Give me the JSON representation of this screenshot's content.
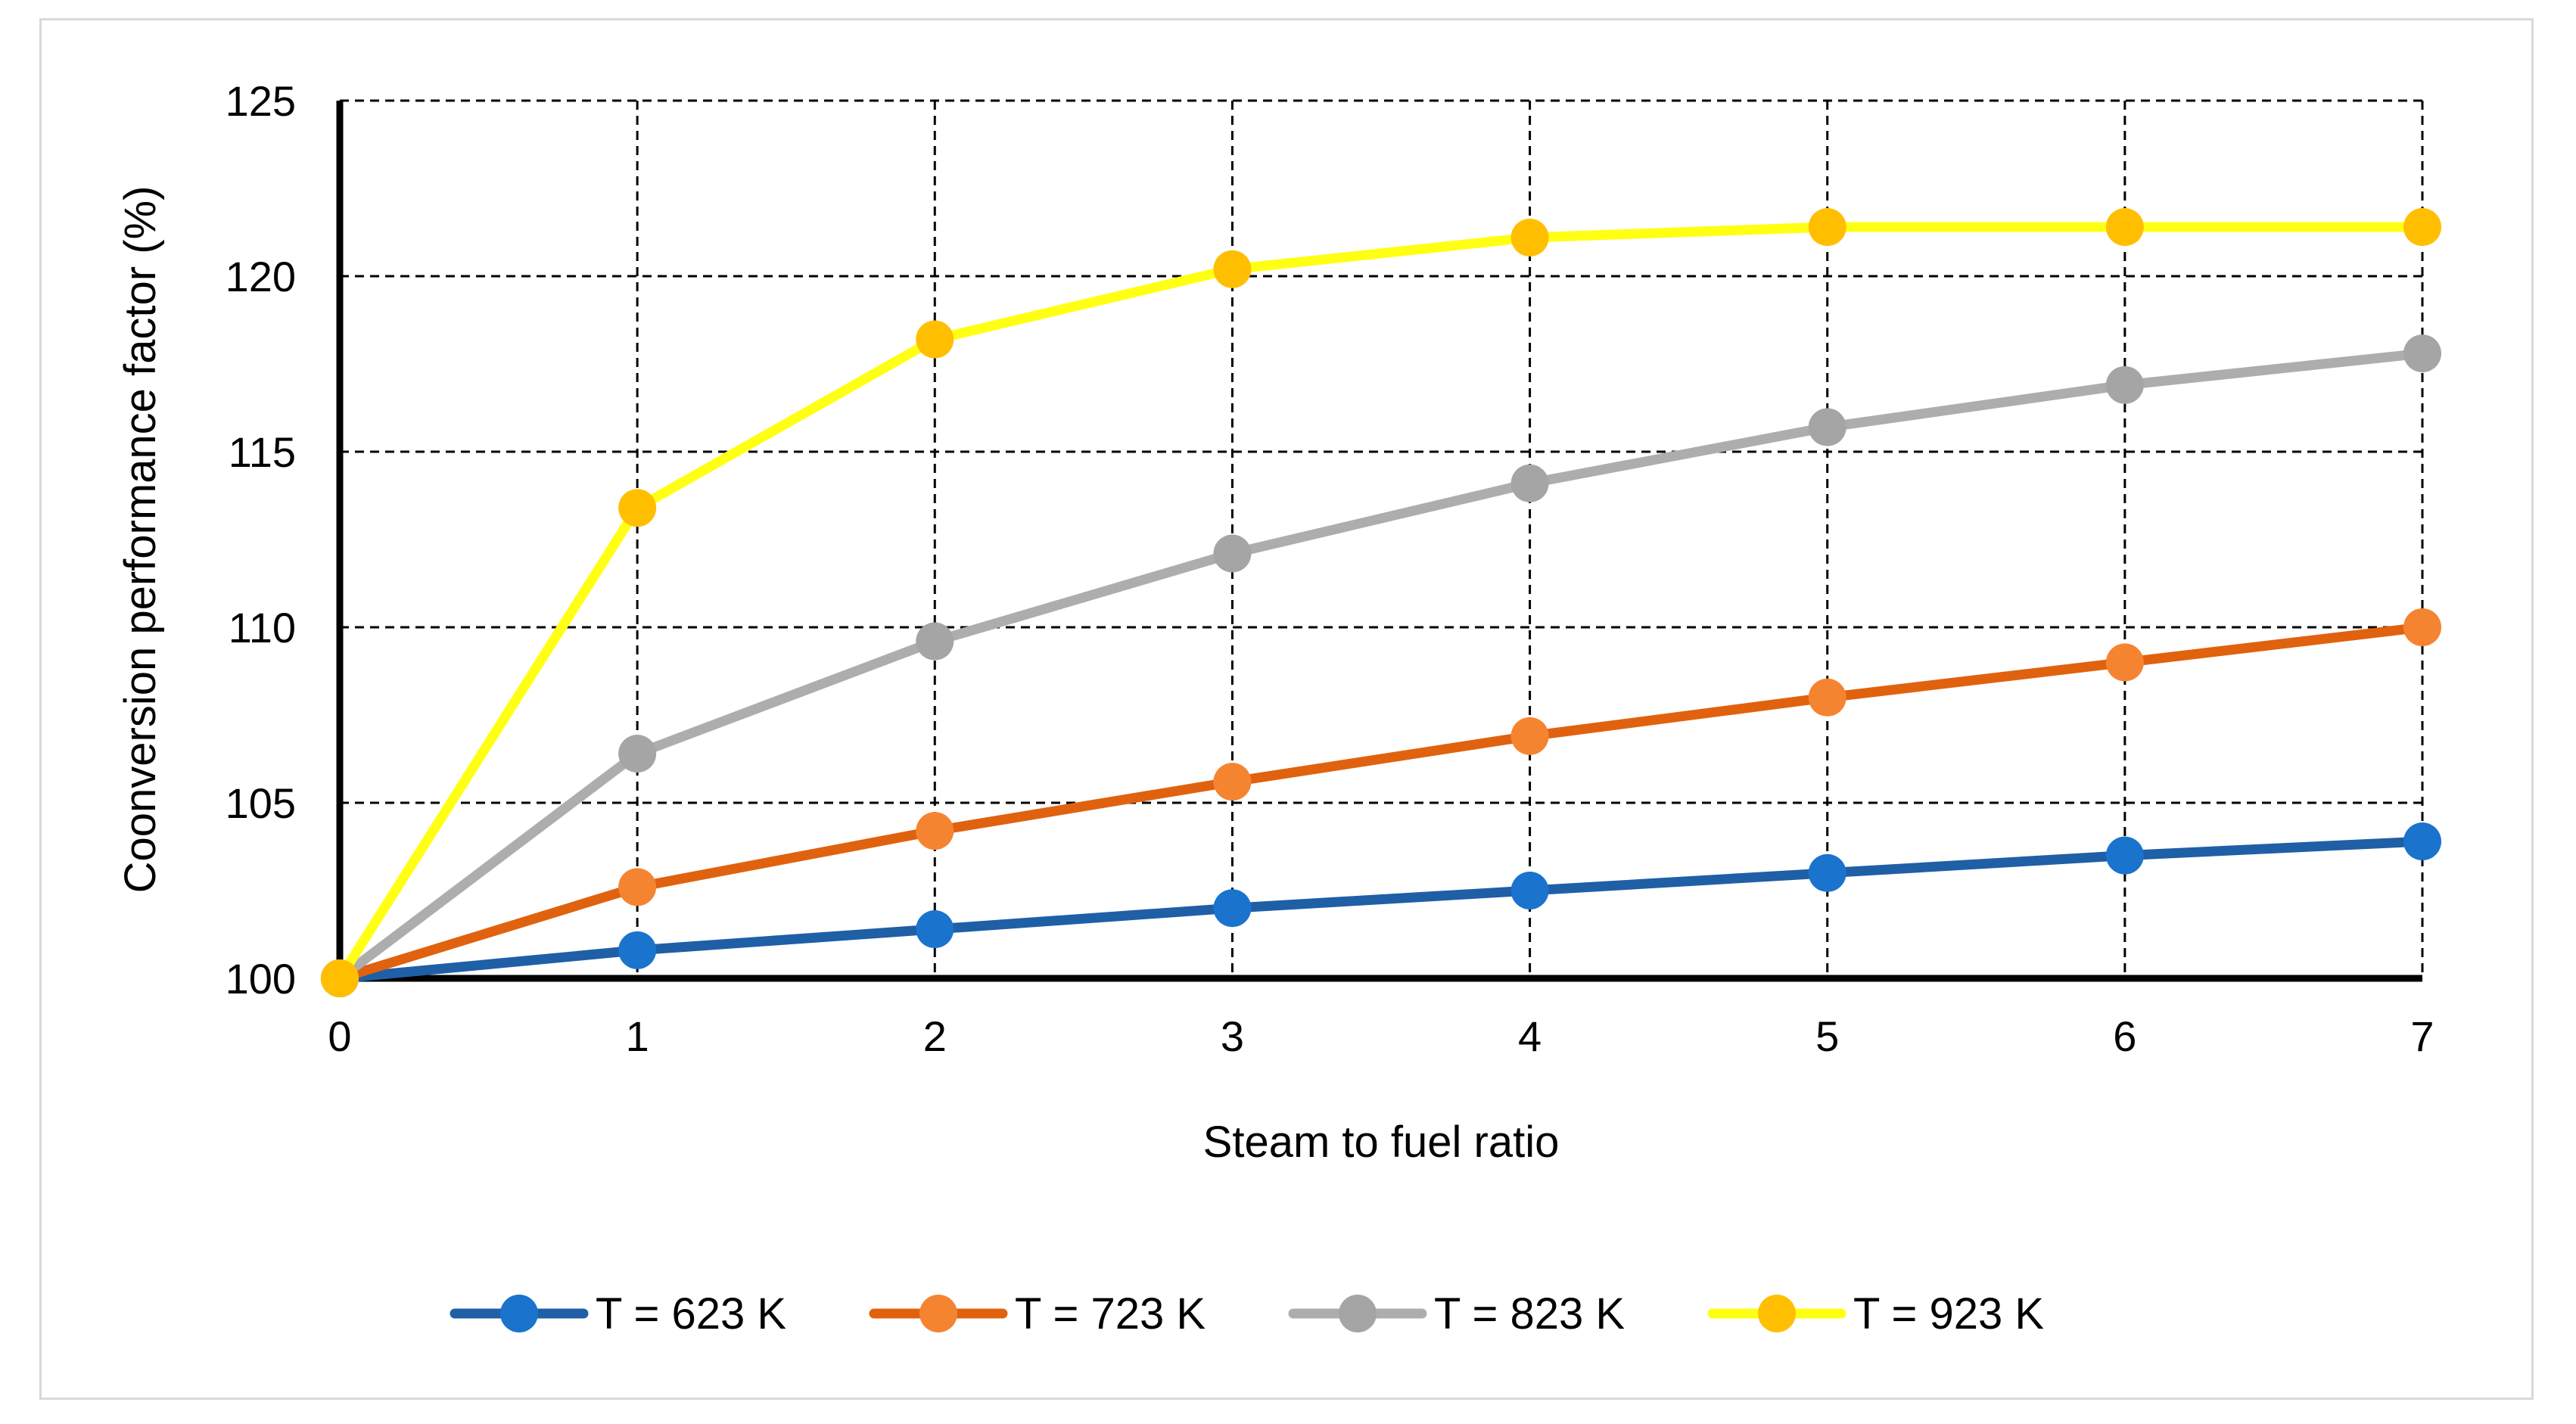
{
  "chart_data": {
    "type": "line",
    "title": "",
    "xlabel": "Steam to fuel ratio",
    "ylabel": "Coonversion performance factor (%)",
    "xlim": [
      0,
      7
    ],
    "ylim": [
      100,
      125
    ],
    "x": [
      0,
      1,
      2,
      3,
      4,
      5,
      6,
      7
    ],
    "x_ticks": [
      "0",
      "1",
      "2",
      "3",
      "4",
      "5",
      "6",
      "7"
    ],
    "y_ticks": [
      "100",
      "105",
      "110",
      "115",
      "120",
      "125"
    ],
    "y_tick_values": [
      100,
      105,
      110,
      115,
      120,
      125
    ],
    "grid": "dashed",
    "legend_position": "bottom",
    "series": [
      {
        "name": "T = 623 K",
        "line_color": "#1f5fa6",
        "marker_color": "#1a73cc",
        "values": [
          100,
          100.8,
          101.4,
          102.0,
          102.5,
          103.0,
          103.5,
          103.9
        ]
      },
      {
        "name": "T = 723 K",
        "line_color": "#e0620e",
        "marker_color": "#f58431",
        "values": [
          100,
          102.6,
          104.2,
          105.6,
          106.9,
          108.0,
          109.0,
          110.0
        ]
      },
      {
        "name": "T = 823 K",
        "line_color": "#adadad",
        "marker_color": "#a5a5a5",
        "values": [
          100,
          106.4,
          109.6,
          112.1,
          114.1,
          115.7,
          116.9,
          117.8
        ]
      },
      {
        "name": "T = 923 K",
        "line_color": "#ffff14",
        "marker_color": "#ffbf00",
        "values": [
          100,
          113.4,
          118.2,
          120.2,
          121.1,
          121.4,
          121.4,
          121.4
        ]
      }
    ]
  }
}
